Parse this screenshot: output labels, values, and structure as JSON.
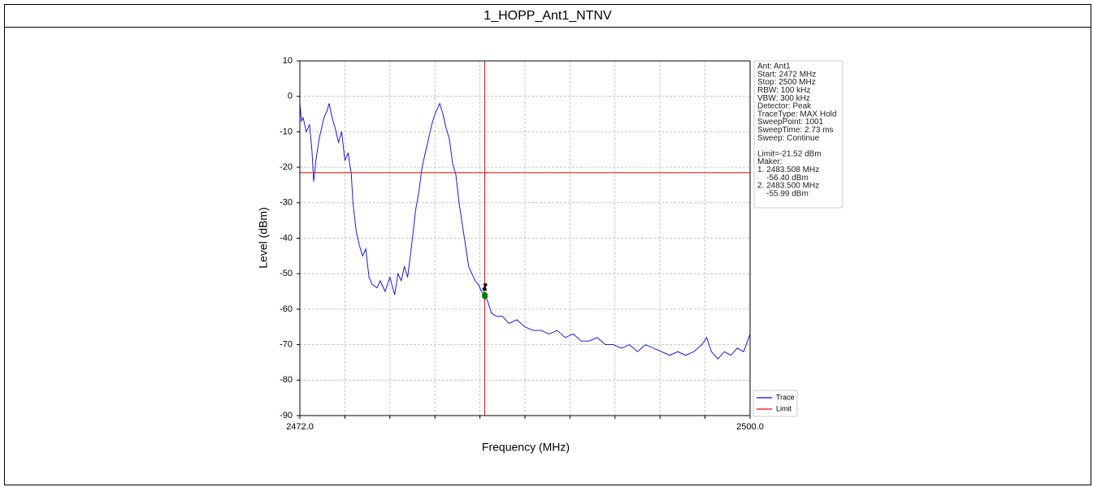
{
  "title": "1_HOPP_Ant1_NTNV",
  "chart_data": {
    "type": "line",
    "xlabel": "Frequency (MHz)",
    "ylabel": "Level (dBm)",
    "xlim": [
      2472,
      2500
    ],
    "ylim": [
      -90,
      10
    ],
    "xticks": [
      {
        "value": 2472,
        "label": "2472.0"
      },
      {
        "value": 2474.8,
        "label": null
      },
      {
        "value": 2477.6,
        "label": null
      },
      {
        "value": 2480.4,
        "label": null
      },
      {
        "value": 2483.2,
        "label": null
      },
      {
        "value": 2486,
        "label": null
      },
      {
        "value": 2488.8,
        "label": null
      },
      {
        "value": 2491.6,
        "label": null
      },
      {
        "value": 2494.4,
        "label": null
      },
      {
        "value": 2497.2,
        "label": null
      },
      {
        "value": 2500,
        "label": "2500.0"
      }
    ],
    "yticks": [
      -90,
      -80,
      -70,
      -60,
      -50,
      -40,
      -30,
      -20,
      -10,
      0,
      10
    ],
    "grid": true,
    "series": [
      {
        "name": "Trace",
        "color": "#0000ff",
        "x": [
          2472,
          2472.1,
          2472.2,
          2472.4,
          2472.6,
          2472.75,
          2472.86,
          2473.0,
          2473.2,
          2473.5,
          2473.7,
          2473.82,
          2474.0,
          2474.2,
          2474.4,
          2474.6,
          2474.8,
          2475.0,
          2475.2,
          2475.3,
          2475.5,
          2475.7,
          2475.9,
          2476.1,
          2476.3,
          2476.5,
          2476.8,
          2477.0,
          2477.3,
          2477.6,
          2477.9,
          2478.1,
          2478.3,
          2478.5,
          2478.7,
          2478.9,
          2479.0,
          2479.2,
          2479.4,
          2479.6,
          2479.8,
          2480.0,
          2480.2,
          2480.4,
          2480.6,
          2480.7,
          2480.9,
          2481.1,
          2481.3,
          2481.5,
          2481.7,
          2481.9,
          2482.1,
          2482.3,
          2482.5,
          2482.7,
          2482.9,
          2483.1,
          2483.3,
          2483.5,
          2483.7,
          2483.9,
          2484.2,
          2484.6,
          2485.0,
          2485.5,
          2486.0,
          2486.5,
          2487.0,
          2487.5,
          2488.0,
          2488.5,
          2489.0,
          2489.5,
          2490.0,
          2490.5,
          2491.0,
          2491.5,
          2492.0,
          2492.5,
          2493.0,
          2493.5,
          2494.0,
          2494.5,
          2495.0,
          2495.5,
          2496.0,
          2496.5,
          2497.0,
          2497.3,
          2497.6,
          2498.0,
          2498.4,
          2498.8,
          2499.2,
          2499.6,
          2500
        ],
        "values": [
          -2,
          -7,
          -6,
          -10,
          -8,
          -15,
          -24,
          -18,
          -12,
          -6,
          -4,
          -2,
          -6,
          -9,
          -13,
          -10,
          -18,
          -16,
          -22,
          -30,
          -38,
          -42,
          -45,
          -43,
          -51,
          -53,
          -54,
          -52,
          -55,
          -51,
          -56,
          -50,
          -52,
          -48,
          -51,
          -44,
          -40,
          -32,
          -27,
          -20,
          -16,
          -12,
          -8,
          -5,
          -3,
          -2,
          -5,
          -9,
          -12,
          -19,
          -22,
          -30,
          -36,
          -42,
          -48,
          -50,
          -52,
          -53,
          -55,
          -56,
          -58,
          -61,
          -62,
          -62,
          -64,
          -63,
          -65,
          -66,
          -66,
          -67,
          -66,
          -68,
          -67,
          -69,
          -69,
          -68,
          -70,
          -70,
          -71,
          -70,
          -72,
          -70,
          -71,
          -72,
          -73,
          -72,
          -73,
          -72,
          -70,
          -68,
          -72,
          -74,
          -72,
          -73,
          -71,
          -72,
          -67
        ]
      }
    ],
    "limit": {
      "name": "Limit",
      "color": "#ff0000",
      "value": -21.52
    },
    "vline": {
      "color": "#ff0000",
      "value": 2483.5
    },
    "markers": [
      {
        "label": "1",
        "x": 2483.508,
        "value": -56.4,
        "color": "#008000"
      },
      {
        "label": "2",
        "x": 2483.5,
        "value": -55.99,
        "color": "#008000"
      }
    ],
    "info": [
      "Ant: Ant1",
      "Start: 2472 MHz",
      "Stop: 2500 MHz",
      "RBW: 100 kHz",
      "VBW: 300 kHz",
      "Detector: Peak",
      "TraceType: MAX Hold",
      "SweepPoint: 1001",
      "SweepTime: 2.73 ms",
      "Sweep: Continue",
      null,
      "Limit=-21.52 dBm",
      "Maker:",
      "1. 2483.508 MHz",
      "    -56.40 dBm",
      "2. 2483.500 MHz",
      "    -55.99 dBm"
    ]
  }
}
